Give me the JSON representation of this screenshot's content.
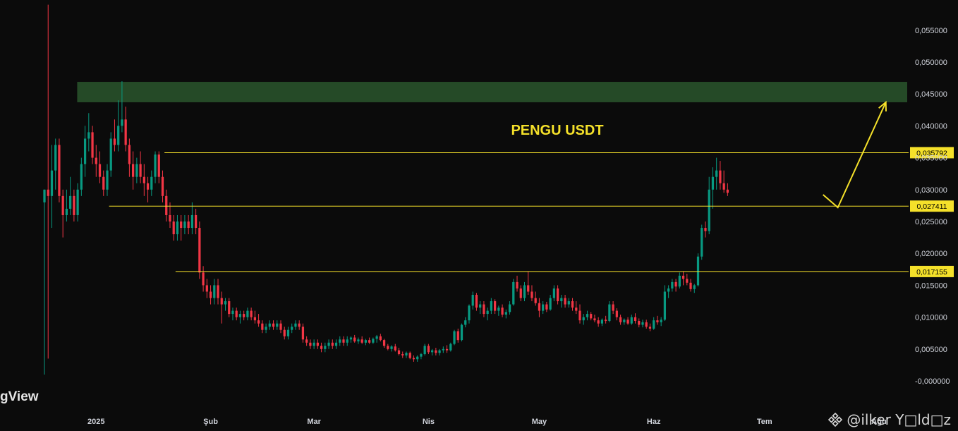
{
  "chart_data": {
    "type": "candlestick",
    "title": "PENGU USDT",
    "y_axis": {
      "range": [
        -0.0005,
        0.0595
      ],
      "ticks": [
        "0,055000",
        "0,050000",
        "0,045000",
        "0,040000",
        "0,035000",
        "0,030000",
        "0,025000",
        "0,020000",
        "0,015000",
        "0,010000",
        "0,005000",
        "-0,000000"
      ],
      "tick_values": [
        0.055,
        0.05,
        0.045,
        0.04,
        0.035,
        0.03,
        0.025,
        0.02,
        0.015,
        0.01,
        0.005,
        0.0
      ],
      "position": "right"
    },
    "x_axis": {
      "labels": [
        "2025",
        "Şub",
        "Mar",
        "Nis",
        "May",
        "Haz",
        "Tem",
        "Ağu"
      ],
      "label_days": [
        14,
        45,
        73,
        104,
        134,
        165,
        195,
        226
      ],
      "day_range": [
        0,
        233
      ]
    },
    "resistance_zone": {
      "low": 0.0437,
      "high": 0.0469,
      "from_day": 6,
      "color": "#254a27"
    },
    "levels": [
      {
        "value": 0.035792,
        "label": "0,035792",
        "from_day": 22
      },
      {
        "value": 0.027411,
        "label": "0,027411",
        "from_day": 7
      },
      {
        "value": 0.017155,
        "label": "0,017155",
        "from_day": 25
      }
    ],
    "projection": [
      {
        "day": 212,
        "value": 0.0292
      },
      {
        "day": 216,
        "value": 0.0272
      },
      {
        "day": 229,
        "value": 0.0437
      }
    ],
    "ohlc_days_start": 0,
    "ohlc": [
      [
        0.028,
        0.03,
        0.001,
        0.03
      ],
      [
        0.03,
        0.059,
        0.0035,
        0.029
      ],
      [
        0.029,
        0.037,
        0.024,
        0.033
      ],
      [
        0.033,
        0.038,
        0.03,
        0.037
      ],
      [
        0.037,
        0.038,
        0.028,
        0.029
      ],
      [
        0.029,
        0.03,
        0.0225,
        0.026
      ],
      [
        0.026,
        0.03,
        0.025,
        0.027
      ],
      [
        0.027,
        0.032,
        0.026,
        0.029
      ],
      [
        0.029,
        0.03,
        0.025,
        0.026
      ],
      [
        0.026,
        0.031,
        0.025,
        0.03
      ],
      [
        0.03,
        0.035,
        0.029,
        0.034
      ],
      [
        0.034,
        0.04,
        0.032,
        0.038
      ],
      [
        0.038,
        0.042,
        0.036,
        0.039
      ],
      [
        0.039,
        0.04,
        0.034,
        0.035
      ],
      [
        0.035,
        0.037,
        0.032,
        0.034
      ],
      [
        0.034,
        0.036,
        0.031,
        0.032
      ],
      [
        0.032,
        0.033,
        0.029,
        0.03
      ],
      [
        0.03,
        0.034,
        0.029,
        0.033
      ],
      [
        0.033,
        0.039,
        0.032,
        0.038
      ],
      [
        0.038,
        0.041,
        0.036,
        0.037
      ],
      [
        0.037,
        0.044,
        0.036,
        0.04
      ],
      [
        0.04,
        0.047,
        0.039,
        0.041
      ],
      [
        0.041,
        0.043,
        0.036,
        0.037
      ],
      [
        0.037,
        0.038,
        0.032,
        0.034
      ],
      [
        0.034,
        0.036,
        0.03,
        0.032
      ],
      [
        0.032,
        0.035,
        0.031,
        0.034
      ],
      [
        0.034,
        0.036,
        0.031,
        0.032
      ],
      [
        0.032,
        0.034,
        0.029,
        0.031
      ],
      [
        0.031,
        0.032,
        0.028,
        0.03
      ],
      [
        0.03,
        0.033,
        0.029,
        0.032
      ],
      [
        0.032,
        0.036,
        0.031,
        0.0355
      ],
      [
        0.0355,
        0.036,
        0.031,
        0.032
      ],
      [
        0.032,
        0.033,
        0.028,
        0.029
      ],
      [
        0.029,
        0.03,
        0.025,
        0.026
      ],
      [
        0.026,
        0.028,
        0.024,
        0.025
      ],
      [
        0.025,
        0.026,
        0.022,
        0.023
      ],
      [
        0.023,
        0.026,
        0.022,
        0.025
      ],
      [
        0.025,
        0.026,
        0.022,
        0.024
      ],
      [
        0.024,
        0.026,
        0.023,
        0.025
      ],
      [
        0.025,
        0.026,
        0.023,
        0.024
      ],
      [
        0.024,
        0.028,
        0.023,
        0.026
      ],
      [
        0.026,
        0.027,
        0.023,
        0.024
      ],
      [
        0.024,
        0.025,
        0.016,
        0.017
      ],
      [
        0.017,
        0.018,
        0.014,
        0.015
      ],
      [
        0.015,
        0.016,
        0.013,
        0.014
      ],
      [
        0.014,
        0.015,
        0.012,
        0.013
      ],
      [
        0.013,
        0.016,
        0.012,
        0.015
      ],
      [
        0.015,
        0.016,
        0.012,
        0.013
      ],
      [
        0.013,
        0.014,
        0.009,
        0.012
      ],
      [
        0.012,
        0.013,
        0.011,
        0.0125
      ],
      [
        0.0125,
        0.013,
        0.01,
        0.0105
      ],
      [
        0.0105,
        0.0115,
        0.0095,
        0.011
      ],
      [
        0.011,
        0.0115,
        0.0095,
        0.01
      ],
      [
        0.01,
        0.011,
        0.009,
        0.0105
      ],
      [
        0.0105,
        0.011,
        0.0095,
        0.01
      ],
      [
        0.01,
        0.0115,
        0.0095,
        0.011
      ],
      [
        0.011,
        0.0115,
        0.0095,
        0.01
      ],
      [
        0.01,
        0.011,
        0.009,
        0.0095
      ],
      [
        0.0095,
        0.0105,
        0.0085,
        0.009
      ],
      [
        0.009,
        0.0095,
        0.0075,
        0.008
      ],
      [
        0.008,
        0.009,
        0.0075,
        0.0085
      ],
      [
        0.0085,
        0.0095,
        0.008,
        0.009
      ],
      [
        0.009,
        0.0095,
        0.008,
        0.0085
      ],
      [
        0.0085,
        0.0095,
        0.008,
        0.009
      ],
      [
        0.009,
        0.0095,
        0.0075,
        0.008
      ],
      [
        0.008,
        0.0085,
        0.0065,
        0.007
      ],
      [
        0.007,
        0.0085,
        0.0065,
        0.008
      ],
      [
        0.008,
        0.009,
        0.0075,
        0.0085
      ],
      [
        0.0085,
        0.0095,
        0.008,
        0.009
      ],
      [
        0.009,
        0.0095,
        0.008,
        0.0085
      ],
      [
        0.0085,
        0.009,
        0.006,
        0.0065
      ],
      [
        0.0065,
        0.007,
        0.0055,
        0.006
      ],
      [
        0.006,
        0.0065,
        0.005,
        0.0055
      ],
      [
        0.0055,
        0.0065,
        0.005,
        0.006
      ],
      [
        0.006,
        0.0065,
        0.005,
        0.0055
      ],
      [
        0.0055,
        0.006,
        0.0045,
        0.005
      ],
      [
        0.005,
        0.006,
        0.0045,
        0.0055
      ],
      [
        0.0055,
        0.0065,
        0.005,
        0.006
      ],
      [
        0.006,
        0.0065,
        0.005,
        0.0055
      ],
      [
        0.0055,
        0.0065,
        0.005,
        0.006
      ],
      [
        0.006,
        0.007,
        0.0055,
        0.0065
      ],
      [
        0.0065,
        0.007,
        0.0055,
        0.006
      ],
      [
        0.006,
        0.007,
        0.0055,
        0.0065
      ],
      [
        0.0065,
        0.007,
        0.006,
        0.0068
      ],
      [
        0.0068,
        0.0072,
        0.006,
        0.0062
      ],
      [
        0.0062,
        0.0068,
        0.0058,
        0.0065
      ],
      [
        0.0065,
        0.007,
        0.0058,
        0.006
      ],
      [
        0.006,
        0.0066,
        0.0056,
        0.0064
      ],
      [
        0.0064,
        0.0068,
        0.0058,
        0.006
      ],
      [
        0.006,
        0.0068,
        0.0058,
        0.0066
      ],
      [
        0.0066,
        0.0072,
        0.006,
        0.007
      ],
      [
        0.007,
        0.0074,
        0.0062,
        0.0064
      ],
      [
        0.0064,
        0.0066,
        0.0052,
        0.0055
      ],
      [
        0.0055,
        0.0058,
        0.0048,
        0.005
      ],
      [
        0.005,
        0.0056,
        0.0046,
        0.0054
      ],
      [
        0.0054,
        0.0058,
        0.0046,
        0.0048
      ],
      [
        0.0048,
        0.0052,
        0.004,
        0.0042
      ],
      [
        0.0042,
        0.0046,
        0.0036,
        0.004
      ],
      [
        0.004,
        0.0046,
        0.0036,
        0.0044
      ],
      [
        0.0044,
        0.0046,
        0.0034,
        0.0036
      ],
      [
        0.0036,
        0.004,
        0.003,
        0.0034
      ],
      [
        0.0034,
        0.004,
        0.003,
        0.0038
      ],
      [
        0.0038,
        0.0044,
        0.0034,
        0.0042
      ],
      [
        0.0042,
        0.0058,
        0.004,
        0.0055
      ],
      [
        0.0055,
        0.0058,
        0.0042,
        0.0045
      ],
      [
        0.0045,
        0.005,
        0.004,
        0.0048
      ],
      [
        0.0048,
        0.0052,
        0.004,
        0.0044
      ],
      [
        0.0044,
        0.005,
        0.004,
        0.0048
      ],
      [
        0.0048,
        0.0054,
        0.0044,
        0.005
      ],
      [
        0.005,
        0.0056,
        0.0044,
        0.0048
      ],
      [
        0.0048,
        0.006,
        0.0046,
        0.0058
      ],
      [
        0.0058,
        0.008,
        0.0056,
        0.0078
      ],
      [
        0.0078,
        0.0082,
        0.006,
        0.0064
      ],
      [
        0.0064,
        0.009,
        0.0062,
        0.0088
      ],
      [
        0.0088,
        0.01,
        0.0084,
        0.0095
      ],
      [
        0.0095,
        0.012,
        0.009,
        0.0118
      ],
      [
        0.0118,
        0.014,
        0.0112,
        0.0135
      ],
      [
        0.0135,
        0.0138,
        0.011,
        0.0115
      ],
      [
        0.0115,
        0.0125,
        0.0105,
        0.012
      ],
      [
        0.012,
        0.0125,
        0.01,
        0.0105
      ],
      [
        0.0105,
        0.0115,
        0.0095,
        0.011
      ],
      [
        0.011,
        0.013,
        0.0105,
        0.0125
      ],
      [
        0.0125,
        0.0128,
        0.0105,
        0.011
      ],
      [
        0.011,
        0.0118,
        0.0102,
        0.0115
      ],
      [
        0.0115,
        0.012,
        0.01,
        0.0104
      ],
      [
        0.0104,
        0.0112,
        0.0098,
        0.0108
      ],
      [
        0.0108,
        0.0125,
        0.0104,
        0.012
      ],
      [
        0.012,
        0.016,
        0.0118,
        0.0155
      ],
      [
        0.0155,
        0.0165,
        0.014,
        0.0145
      ],
      [
        0.0145,
        0.015,
        0.0125,
        0.013
      ],
      [
        0.013,
        0.0155,
        0.0125,
        0.015
      ],
      [
        0.015,
        0.0172,
        0.0135,
        0.014
      ],
      [
        0.014,
        0.015,
        0.0125,
        0.013
      ],
      [
        0.013,
        0.014,
        0.0118,
        0.0122
      ],
      [
        0.0122,
        0.013,
        0.01,
        0.011
      ],
      [
        0.011,
        0.0125,
        0.0105,
        0.012
      ],
      [
        0.012,
        0.0124,
        0.0108,
        0.0112
      ],
      [
        0.0112,
        0.0135,
        0.011,
        0.013
      ],
      [
        0.013,
        0.015,
        0.0125,
        0.0145
      ],
      [
        0.0145,
        0.015,
        0.012,
        0.0125
      ],
      [
        0.0125,
        0.0135,
        0.0115,
        0.013
      ],
      [
        0.013,
        0.0135,
        0.0115,
        0.012
      ],
      [
        0.012,
        0.013,
        0.0115,
        0.0125
      ],
      [
        0.0125,
        0.013,
        0.011,
        0.0115
      ],
      [
        0.0115,
        0.0125,
        0.0105,
        0.011
      ],
      [
        0.011,
        0.012,
        0.009,
        0.0095
      ],
      [
        0.0095,
        0.0105,
        0.0088,
        0.01
      ],
      [
        0.01,
        0.011,
        0.0095,
        0.0105
      ],
      [
        0.0105,
        0.0108,
        0.0095,
        0.0098
      ],
      [
        0.0098,
        0.0104,
        0.0092,
        0.0095
      ],
      [
        0.0095,
        0.01,
        0.0085,
        0.009
      ],
      [
        0.009,
        0.0098,
        0.0086,
        0.0096
      ],
      [
        0.0096,
        0.0102,
        0.009,
        0.0094
      ],
      [
        0.0094,
        0.0125,
        0.0092,
        0.012
      ],
      [
        0.012,
        0.0125,
        0.0105,
        0.011
      ],
      [
        0.011,
        0.0114,
        0.0095,
        0.01
      ],
      [
        0.01,
        0.0104,
        0.0088,
        0.0092
      ],
      [
        0.0092,
        0.0098,
        0.0088,
        0.0096
      ],
      [
        0.0096,
        0.01,
        0.0088,
        0.009
      ],
      [
        0.009,
        0.0104,
        0.0088,
        0.01
      ],
      [
        0.01,
        0.0106,
        0.009,
        0.0094
      ],
      [
        0.0094,
        0.0098,
        0.0084,
        0.0088
      ],
      [
        0.0088,
        0.0096,
        0.0084,
        0.0092
      ],
      [
        0.0092,
        0.0096,
        0.0082,
        0.0085
      ],
      [
        0.0085,
        0.009,
        0.0078,
        0.0082
      ],
      [
        0.0082,
        0.01,
        0.008,
        0.0095
      ],
      [
        0.0095,
        0.0102,
        0.0088,
        0.0092
      ],
      [
        0.0092,
        0.01,
        0.0086,
        0.0096
      ],
      [
        0.0096,
        0.015,
        0.0094,
        0.014
      ],
      [
        0.014,
        0.015,
        0.013,
        0.0145
      ],
      [
        0.0145,
        0.016,
        0.014,
        0.0155
      ],
      [
        0.0155,
        0.016,
        0.014,
        0.0148
      ],
      [
        0.0148,
        0.017,
        0.0145,
        0.0165
      ],
      [
        0.0165,
        0.0172,
        0.015,
        0.016
      ],
      [
        0.016,
        0.0168,
        0.015,
        0.0154
      ],
      [
        0.0154,
        0.016,
        0.014,
        0.0144
      ],
      [
        0.0144,
        0.0152,
        0.0138,
        0.015
      ],
      [
        0.015,
        0.02,
        0.0148,
        0.0195
      ],
      [
        0.0195,
        0.0245,
        0.019,
        0.024
      ],
      [
        0.024,
        0.025,
        0.0225,
        0.0235
      ],
      [
        0.0235,
        0.032,
        0.023,
        0.03
      ],
      [
        0.03,
        0.0335,
        0.027,
        0.032
      ],
      [
        0.032,
        0.035,
        0.03,
        0.033
      ],
      [
        0.033,
        0.0345,
        0.03,
        0.031
      ],
      [
        0.031,
        0.033,
        0.0295,
        0.03
      ],
      [
        0.03,
        0.031,
        0.029,
        0.0295
      ]
    ]
  },
  "watermark": "gView",
  "handle": "@ilker Y□ld□z",
  "colors": {
    "up": "#089981",
    "down": "#f23645",
    "level": "#f5e12a",
    "zone": "#254a27",
    "background": "#0b0b0b"
  }
}
